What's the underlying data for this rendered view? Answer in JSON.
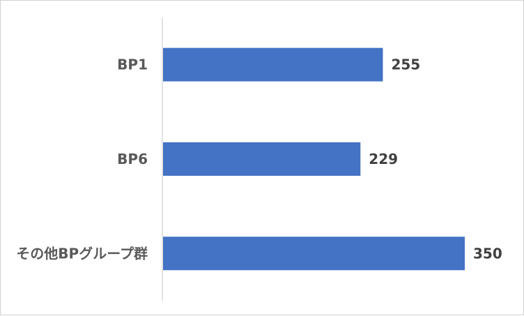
{
  "chart_data": {
    "type": "bar",
    "orientation": "horizontal",
    "categories": [
      "BP1",
      "BP6",
      "その他BPグループ群"
    ],
    "values": [
      255,
      229,
      350
    ],
    "title": "",
    "xlabel": "",
    "ylabel": "",
    "xlim": [
      0,
      350
    ],
    "grid": false,
    "legend": "none",
    "data_labels": true,
    "bar_color": "#4472C4"
  }
}
